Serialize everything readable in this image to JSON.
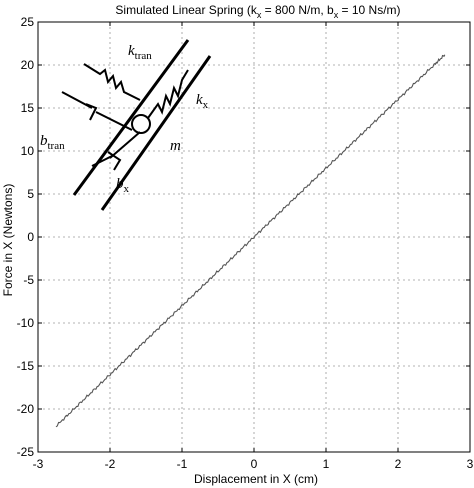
{
  "chart_data": {
    "type": "line",
    "title": "Simulated Linear Spring (k",
    "title_sub1": "x",
    "title_mid": " = 800 N/m, b",
    "title_sub2": "x",
    "title_end": " = 10 Ns/m)",
    "xlabel": "Displacement in X (cm)",
    "ylabel": "Force in X (Newtons)",
    "xlim": [
      -3,
      3
    ],
    "ylim": [
      -25,
      25
    ],
    "xticks": [
      "-3",
      "-2",
      "-1",
      "0",
      "1",
      "2",
      "3"
    ],
    "yticks": [
      "25",
      "20",
      "15",
      "10",
      "5",
      "0",
      "-5",
      "-10",
      "-15",
      "-20",
      "-25"
    ],
    "grid": true,
    "series": [
      {
        "color": "#555555",
        "x": [
          -2.75,
          -2.5,
          -2.25,
          -2.0,
          -1.75,
          -1.5,
          -1.25,
          -1.0,
          -0.75,
          -0.5,
          -0.25,
          0.0,
          0.25,
          0.5,
          0.75,
          1.0,
          1.25,
          1.5,
          1.75,
          2.0,
          2.25,
          2.5,
          2.65
        ],
        "y": [
          -22.0,
          -20.0,
          -18.0,
          -16.0,
          -14.0,
          -12.0,
          -10.0,
          -8.0,
          -6.0,
          -4.0,
          -2.0,
          0.0,
          2.0,
          4.0,
          6.0,
          8.0,
          10.0,
          12.0,
          14.0,
          16.0,
          18.0,
          20.0,
          21.2
        ]
      }
    ]
  },
  "diagram": {
    "k_tran": "k",
    "k_tran_sub": "tran",
    "k_x": "k",
    "k_x_sub": "x",
    "b_tran": "b",
    "b_tran_sub": "tran",
    "b_x": "b",
    "b_x_sub": "x",
    "m": "m"
  }
}
